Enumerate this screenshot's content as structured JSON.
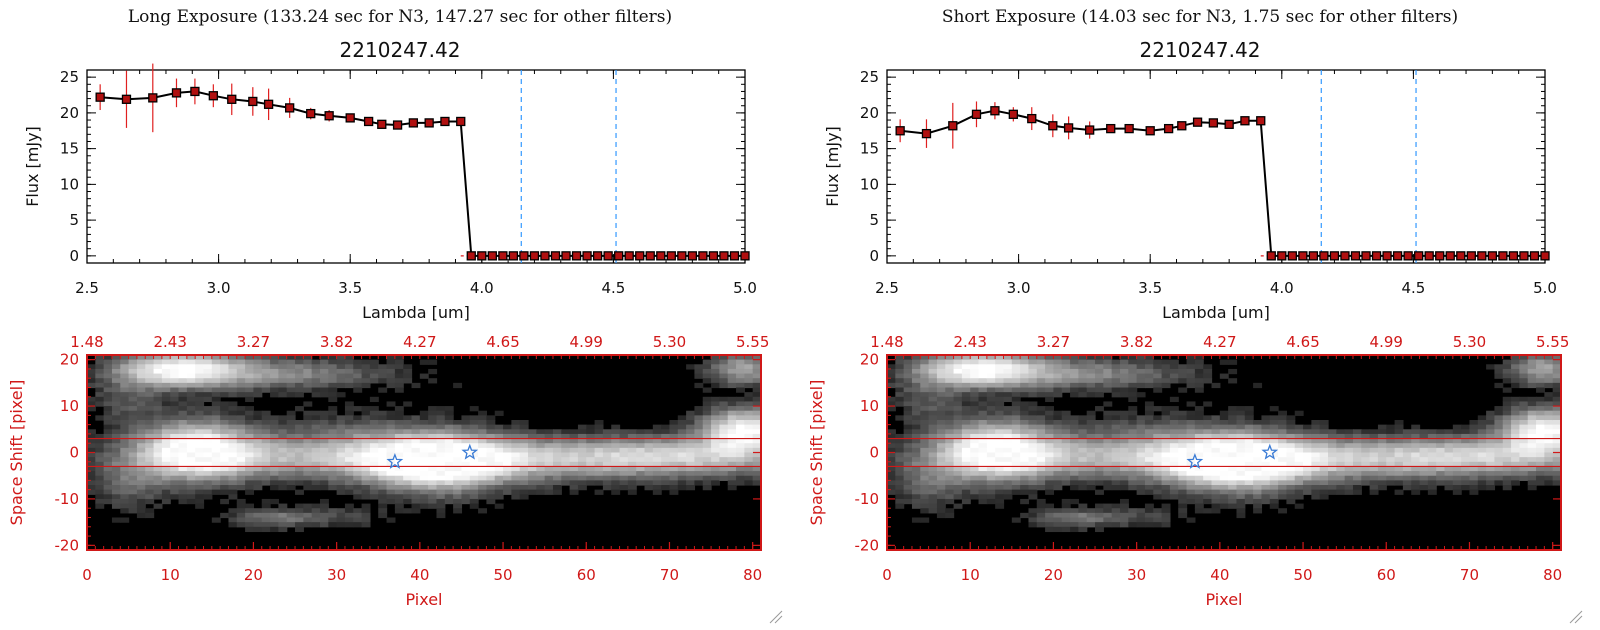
{
  "colors": {
    "line": "#000000",
    "errorbar": "#e02020",
    "marker": "#b01010",
    "dashed": "#3399ff",
    "image_axis": "#d01818",
    "star": "#3a7bd5"
  },
  "chart_data": [
    {
      "type": "line",
      "panel": "left",
      "title": "Long Exposure (133.24 sec for N3, 147.27 sec for other filters)",
      "subtitle": "2210247.42",
      "xlabel": "Lambda [um]",
      "ylabel": "Flux [mJy]",
      "xlim": [
        2.5,
        5.0
      ],
      "ylim": [
        -1,
        26
      ],
      "xticks": [
        "2.5",
        "3.0",
        "3.5",
        "4.0",
        "4.5",
        "5.0"
      ],
      "yticks": [
        "0",
        "5",
        "10",
        "15",
        "20",
        "25"
      ],
      "x": [
        2.55,
        2.65,
        2.75,
        2.84,
        2.91,
        2.98,
        3.05,
        3.13,
        3.19,
        3.27,
        3.35,
        3.42,
        3.5,
        3.57,
        3.62,
        3.68,
        3.74,
        3.8,
        3.86,
        3.92,
        3.96,
        4.0,
        4.04,
        4.08,
        4.12,
        4.16,
        4.2,
        4.24,
        4.28,
        4.32,
        4.36,
        4.4,
        4.44,
        4.48,
        4.52,
        4.56,
        4.6,
        4.64,
        4.68,
        4.72,
        4.76,
        4.8,
        4.84,
        4.88,
        4.92,
        4.96,
        5.0
      ],
      "y": [
        22.2,
        21.9,
        22.1,
        22.8,
        23.0,
        22.4,
        21.9,
        21.6,
        21.2,
        20.7,
        19.9,
        19.6,
        19.3,
        18.8,
        18.4,
        18.3,
        18.6,
        18.6,
        18.8,
        18.8,
        0,
        0,
        0,
        0,
        0,
        0,
        0,
        0,
        0,
        0,
        0,
        0,
        0,
        0,
        0,
        0,
        0,
        0,
        0,
        0,
        0,
        0,
        0,
        0,
        0,
        0,
        0
      ],
      "yerr": [
        1.8,
        4.0,
        4.8,
        2.0,
        1.8,
        1.6,
        2.2,
        2.0,
        2.2,
        1.4,
        0.8,
        0.8,
        0.6,
        0.5,
        0.4,
        0.4,
        0.4,
        0.4,
        0.4,
        0.4,
        0,
        0,
        0,
        0,
        0,
        0,
        0,
        0,
        0,
        0,
        0,
        0,
        0,
        0,
        0,
        0,
        0,
        0,
        0,
        0,
        0,
        0,
        0,
        0,
        0,
        0,
        0
      ],
      "vlines": [
        4.15,
        4.51
      ],
      "image": {
        "top_ticks": [
          "1.48",
          "2.43",
          "3.27",
          "3.82",
          "4.27",
          "4.65",
          "4.99",
          "5.30",
          "5.55"
        ],
        "bottom_ticks": [
          "0",
          "10",
          "20",
          "30",
          "40",
          "50",
          "60",
          "70",
          "80"
        ],
        "left_ticks": [
          "20",
          "10",
          "0",
          "-10",
          "-20"
        ],
        "xlabel": "Pixel",
        "ylabel": "Space Shift [pixel]",
        "xlim": [
          0,
          81
        ],
        "ylim": [
          -21,
          21
        ],
        "band_lines": [
          3,
          -3
        ],
        "stars": [
          {
            "x": 37,
            "y": -2
          },
          {
            "x": 46,
            "y": 0
          }
        ]
      }
    },
    {
      "type": "line",
      "panel": "right",
      "title": "Short Exposure (14.03 sec for N3, 1.75 sec for other filters)",
      "subtitle": "2210247.42",
      "xlabel": "Lambda [um]",
      "ylabel": "Flux [mJy]",
      "xlim": [
        2.5,
        5.0
      ],
      "ylim": [
        -1,
        26
      ],
      "xticks": [
        "2.5",
        "3.0",
        "3.5",
        "4.0",
        "4.5",
        "5.0"
      ],
      "yticks": [
        "0",
        "5",
        "10",
        "15",
        "20",
        "25"
      ],
      "x": [
        2.55,
        2.65,
        2.75,
        2.84,
        2.91,
        2.98,
        3.05,
        3.13,
        3.19,
        3.27,
        3.35,
        3.42,
        3.5,
        3.57,
        3.62,
        3.68,
        3.74,
        3.8,
        3.86,
        3.92,
        3.96,
        4.0,
        4.04,
        4.08,
        4.12,
        4.16,
        4.2,
        4.24,
        4.28,
        4.32,
        4.36,
        4.4,
        4.44,
        4.48,
        4.52,
        4.56,
        4.6,
        4.64,
        4.68,
        4.72,
        4.76,
        4.8,
        4.84,
        4.88,
        4.92,
        4.96,
        5.0
      ],
      "y": [
        17.5,
        17.1,
        18.2,
        19.8,
        20.3,
        19.8,
        19.2,
        18.2,
        17.9,
        17.6,
        17.8,
        17.8,
        17.5,
        17.8,
        18.2,
        18.7,
        18.6,
        18.4,
        18.9,
        18.9,
        0,
        0,
        0,
        0,
        0,
        0,
        0,
        0,
        0,
        0,
        0,
        0,
        0,
        0,
        0,
        0,
        0,
        0,
        0,
        0,
        0,
        0,
        0,
        0,
        0,
        0,
        0
      ],
      "yerr": [
        1.6,
        2.0,
        3.2,
        1.8,
        1.2,
        1.0,
        1.6,
        1.6,
        1.6,
        1.2,
        0.6,
        0.5,
        0.5,
        0.4,
        0.4,
        0.4,
        0.4,
        0.4,
        0.4,
        0.4,
        0,
        0,
        0,
        0,
        0,
        0,
        0,
        0,
        0,
        0,
        0,
        0,
        0,
        0,
        0,
        0,
        0,
        0,
        0,
        0,
        0,
        0,
        0,
        0,
        0,
        0,
        0
      ],
      "vlines": [
        4.15,
        4.51
      ],
      "image": {
        "top_ticks": [
          "1.48",
          "2.43",
          "3.27",
          "3.82",
          "4.27",
          "4.65",
          "4.99",
          "5.30",
          "5.55"
        ],
        "bottom_ticks": [
          "0",
          "10",
          "20",
          "30",
          "40",
          "50",
          "60",
          "70",
          "80"
        ],
        "left_ticks": [
          "20",
          "10",
          "0",
          "-10",
          "-20"
        ],
        "xlabel": "Pixel",
        "ylabel": "Space Shift [pixel]",
        "xlim": [
          0,
          81
        ],
        "ylim": [
          -21,
          21
        ],
        "band_lines": [
          3,
          -3
        ],
        "stars": [
          {
            "x": 37,
            "y": -2
          },
          {
            "x": 46,
            "y": 0
          }
        ]
      }
    }
  ]
}
